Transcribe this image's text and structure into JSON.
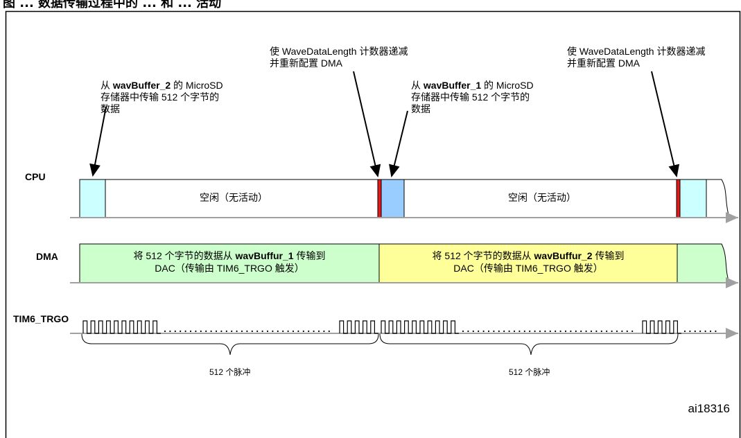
{
  "caption": "图 ... 数据传输过程中的 ... 和 ... 活动",
  "rows": {
    "cpu": "CPU",
    "dma": "DMA",
    "tim": "TIM6_TRGO"
  },
  "annotations": {
    "a1_pre": "从 ",
    "a1_bold": "wavBuffer_2",
    "a1_post": " 的 MicroSD",
    "a1_line2": "存储器中传输 512 个字节的",
    "a1_line3": "数据",
    "a2_line1": "使 WaveDataLength 计数器递减",
    "a2_line2": "并重新配置 DMA",
    "a3_pre": "从 ",
    "a3_bold": "wavBuffer_1",
    "a3_post": " 的 MicroSD",
    "a3_line2": "存储器中传输 512 个字节的",
    "a3_line3": "数据",
    "a4_line1": "使 WaveDataLength 计数器递减",
    "a4_line2": "并重新配置 DMA"
  },
  "cpu_idle_1": "空闲（无活动）",
  "cpu_idle_2": "空闲（无活动）",
  "dma_block_1": {
    "pre": "将 512 个字节的数据从 ",
    "bold": "wavBuffur_1",
    "post": " 传输到",
    "line2": "DAC（传输由 TIM6_TRGO 触发）"
  },
  "dma_block_2": {
    "pre": "将 512 个字节的数据从 ",
    "bold": "wavBuffur_2",
    "post": " 传输到",
    "line2": "DAC（传输由 TIM6_TRGO 触发）"
  },
  "pulse_label_1": "512 个脉冲",
  "pulse_label_2": "512 个脉冲",
  "figure_id": "ai18316",
  "colors": {
    "cyan": "#ccffff",
    "blue": "#99ccff",
    "red": "#e31b1b",
    "green": "#ccffcc",
    "yellow": "#ffff99",
    "axis": "#a0a0a0"
  }
}
